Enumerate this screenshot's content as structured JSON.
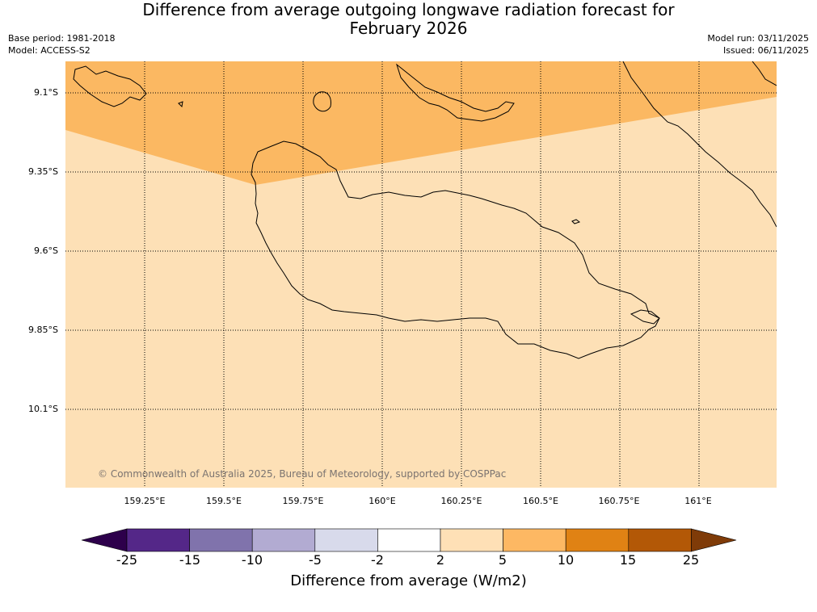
{
  "title": {
    "line1": "Difference from average outgoing longwave radiation forecast for",
    "line2": "February 2026"
  },
  "meta": {
    "base_period": "Base period: 1981-2018",
    "model": "Model: ACCESS-S2",
    "model_run": "Model run: 03/11/2025",
    "issued": "Issued: 06/11/2025"
  },
  "map": {
    "lat_labels": [
      "9.1°S",
      "9.35°S",
      "9.6°S",
      "9.85°S",
      "10.1°S"
    ],
    "lon_labels": [
      "159.25°E",
      "159.5°E",
      "159.75°E",
      "160°E",
      "160.25°E",
      "160.5°E",
      "160.75°E",
      "161°E"
    ],
    "copyright": "© Commonwealth of Australia 2025, Bureau of Meteorology, supported by COSPPac",
    "anomaly_colors": {
      "band_5_10": "#fbb862",
      "band_2_5": "#fde0b6"
    }
  },
  "colorbar": {
    "label": "Difference from average (W/m2)",
    "ticks": [
      "-25",
      "-15",
      "-10",
      "-5",
      "-2",
      "2",
      "5",
      "10",
      "15",
      "25"
    ],
    "colors": [
      "#2d004b",
      "#542788",
      "#8073ac",
      "#b2abd2",
      "#d8daeb",
      "#ffffff",
      "#fee0b6",
      "#fdb863",
      "#e08214",
      "#b35806",
      "#7f3b08"
    ]
  }
}
